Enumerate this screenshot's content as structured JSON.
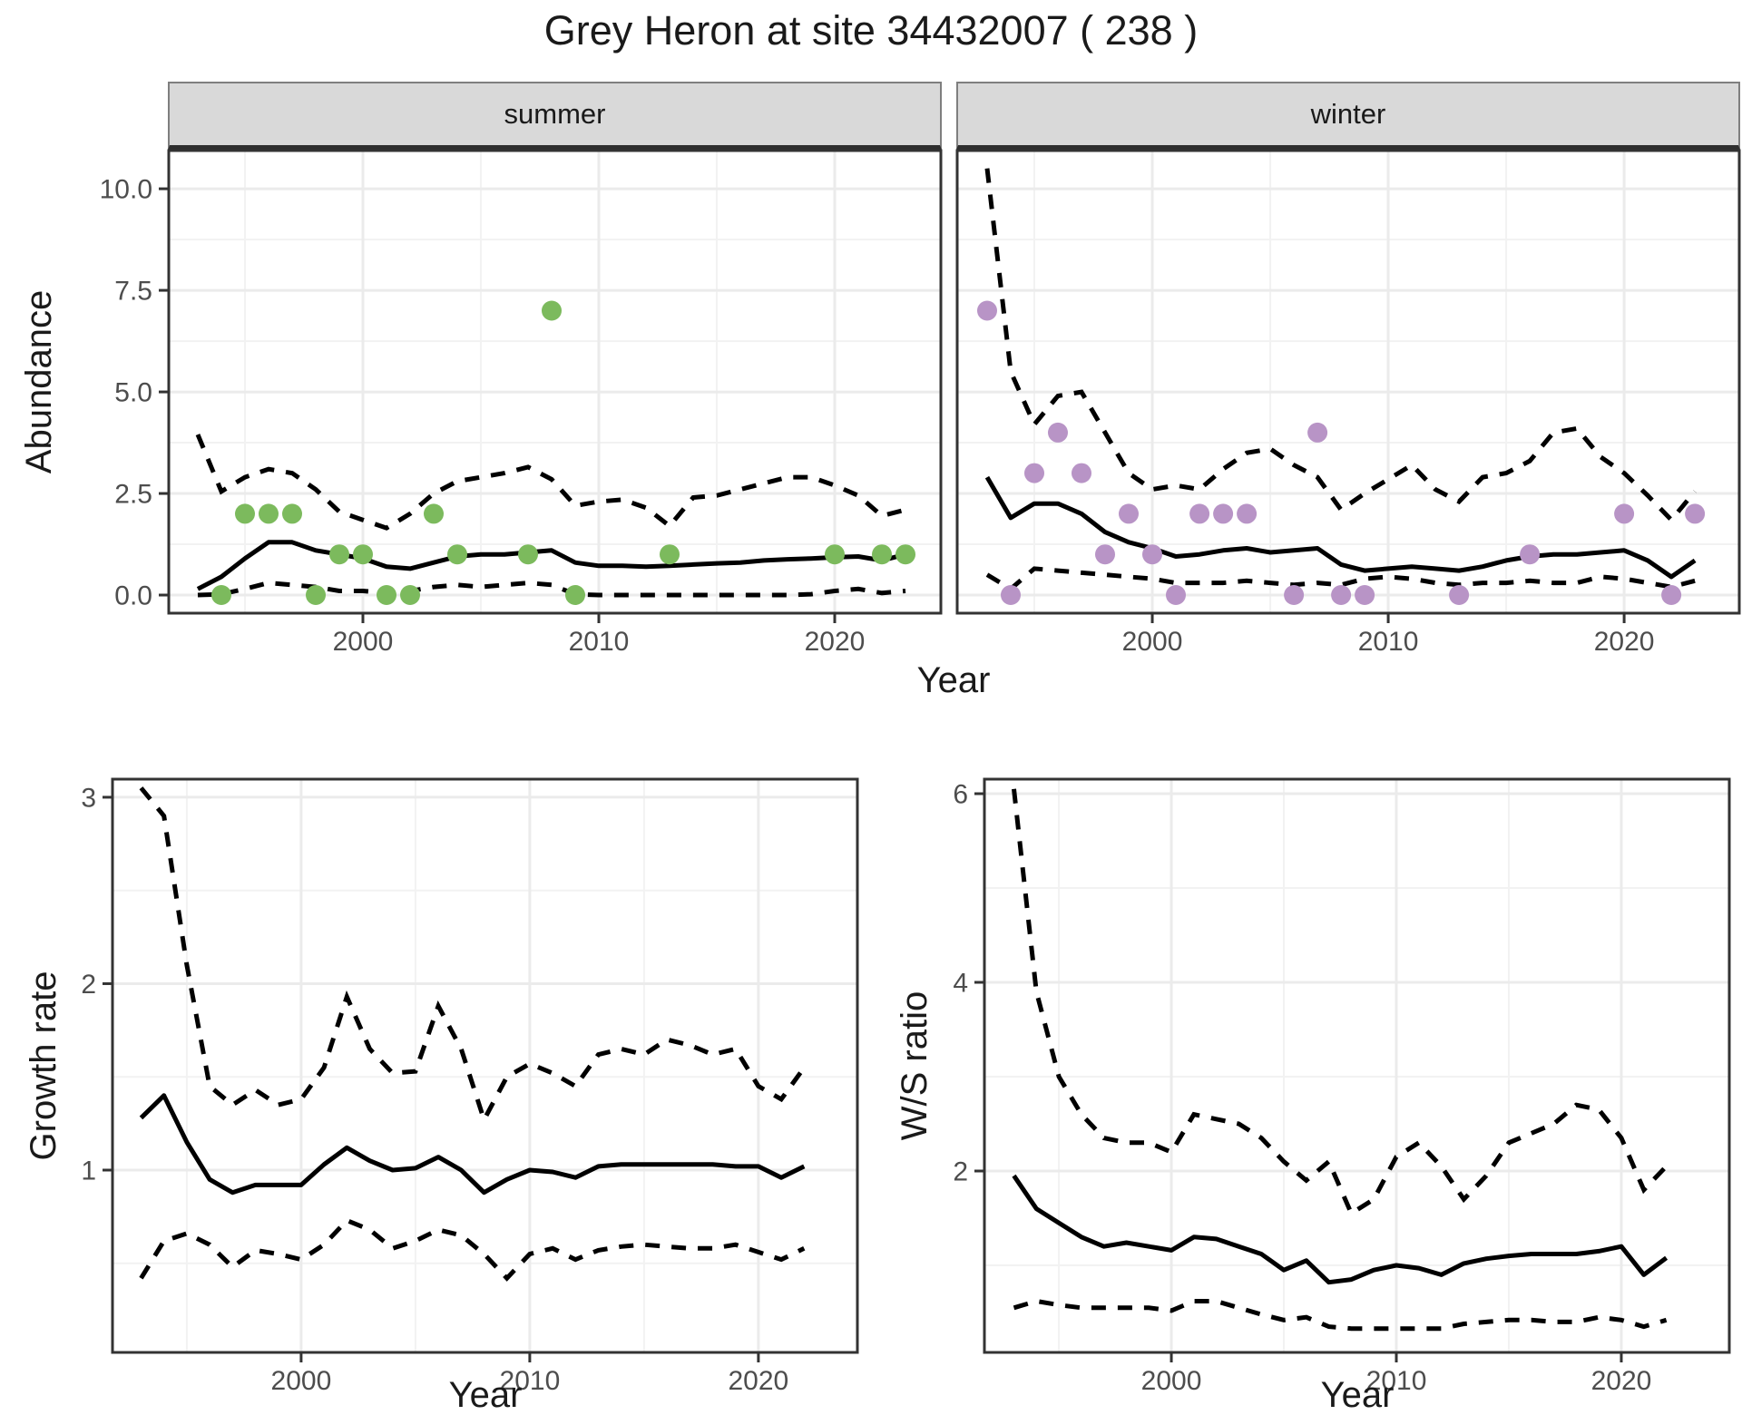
{
  "title": "Grey Heron at site 34432007 ( 238 )",
  "colors": {
    "summer_point": "#7CBA5D",
    "winter_point": "#B894C6",
    "median_line": "#000000",
    "ci_line": "#000000",
    "strip_bg": "#D9D9D9",
    "grid_major": "#EBEBEB",
    "grid_minor": "#F2F2F2",
    "axis_text": "#4D4D4D",
    "panel_border": "#333333",
    "plot_bg": "#FFFFFF"
  },
  "facets": {
    "left": "summer",
    "right": "winter"
  },
  "axis_titles": {
    "y_top": "Abundance",
    "x_top": "Year",
    "y_bottom_left": "Growth rate",
    "x_bottom_left": "Year",
    "y_bottom_right": "W/S ratio",
    "x_bottom_right": "Year"
  },
  "chart_data": [
    {
      "id": "summer",
      "type": "line",
      "facet": "summer",
      "xlabel": "Year",
      "ylabel": "Abundance",
      "xlim": [
        1991.77,
        2024.5
      ],
      "ylim": [
        -0.446,
        10.94
      ],
      "x_ticks": {
        "major": [
          2000,
          2010,
          2020
        ],
        "minor": [
          1995,
          2005,
          2015
        ],
        "labels": [
          "2000",
          "2010",
          "2020"
        ],
        "show_labels": true
      },
      "y_ticks": {
        "major": [
          0,
          2.5,
          5,
          7.5,
          10
        ],
        "minor": [
          1.25,
          3.75,
          6.25,
          8.75
        ],
        "labels": [
          "0.0",
          "2.5",
          "5.0",
          "7.5",
          "10.0"
        ],
        "show_labels": true
      },
      "points": [
        [
          1994,
          0
        ],
        [
          1995,
          2
        ],
        [
          1996,
          2
        ],
        [
          1997,
          2
        ],
        [
          1998,
          0
        ],
        [
          1999,
          1
        ],
        [
          2000,
          1
        ],
        [
          2001,
          0
        ],
        [
          2002,
          0
        ],
        [
          2003,
          2
        ],
        [
          2004,
          1
        ],
        [
          2007,
          1
        ],
        [
          2008,
          7
        ],
        [
          2009,
          0
        ],
        [
          2013,
          1
        ],
        [
          2020,
          1
        ],
        [
          2022,
          1
        ],
        [
          2023,
          1
        ]
      ],
      "point_color": "#7CBA5D",
      "series": [
        {
          "name": "median",
          "style": "solid",
          "start": 1993,
          "values": [
            0.15,
            0.45,
            0.9,
            1.3,
            1.3,
            1.1,
            1.0,
            0.9,
            0.7,
            0.65,
            0.8,
            0.95,
            1.0,
            1.0,
            1.05,
            1.1,
            0.8,
            0.72,
            0.72,
            0.7,
            0.72,
            0.75,
            0.78,
            0.8,
            0.85,
            0.88,
            0.9,
            0.93,
            0.95,
            0.85,
            1.0
          ]
        },
        {
          "name": "upper_ci",
          "style": "dashed",
          "start": 1993,
          "values": [
            3.95,
            2.55,
            2.9,
            3.1,
            3.0,
            2.6,
            2.05,
            1.85,
            1.65,
            2.0,
            2.5,
            2.8,
            2.9,
            3.0,
            3.15,
            2.85,
            2.2,
            2.3,
            2.35,
            2.15,
            1.7,
            2.4,
            2.45,
            2.6,
            2.75,
            2.9,
            2.9,
            2.7,
            2.45,
            1.95,
            2.1
          ]
        },
        {
          "name": "lower_ci",
          "style": "dashed",
          "start": 1993,
          "values": [
            0.0,
            0.02,
            0.15,
            0.3,
            0.25,
            0.2,
            0.1,
            0.1,
            0.05,
            0.1,
            0.2,
            0.25,
            0.2,
            0.25,
            0.3,
            0.25,
            0.02,
            0.0,
            0.0,
            0.0,
            0.0,
            0.0,
            0.0,
            0.0,
            0.0,
            0.0,
            0.02,
            0.1,
            0.15,
            0.05,
            0.1
          ]
        }
      ]
    },
    {
      "id": "winter",
      "type": "line",
      "facet": "winter",
      "xlabel": "Year",
      "ylabel": "Abundance",
      "xlim": [
        1991.73,
        2024.88
      ],
      "ylim": [
        -0.446,
        10.94
      ],
      "x_ticks": {
        "major": [
          2000,
          2010,
          2020
        ],
        "minor": [
          1995,
          2005,
          2015
        ],
        "labels": [
          "2000",
          "2010",
          "2020"
        ],
        "show_labels": true
      },
      "y_ticks": {
        "major": [
          0,
          2.5,
          5,
          7.5,
          10
        ],
        "minor": [
          1.25,
          3.75,
          6.25,
          8.75
        ],
        "labels": [
          "0.0",
          "2.5",
          "5.0",
          "7.5",
          "10.0"
        ],
        "show_labels": false
      },
      "points": [
        [
          1993,
          7
        ],
        [
          1994,
          0
        ],
        [
          1995,
          3
        ],
        [
          1996,
          4
        ],
        [
          1997,
          3
        ],
        [
          1998,
          1
        ],
        [
          1999,
          2
        ],
        [
          2000,
          1
        ],
        [
          2001,
          0
        ],
        [
          2002,
          2
        ],
        [
          2003,
          2
        ],
        [
          2004,
          2
        ],
        [
          2006,
          0
        ],
        [
          2007,
          4
        ],
        [
          2008,
          0
        ],
        [
          2009,
          0
        ],
        [
          2013,
          0
        ],
        [
          2016,
          1
        ],
        [
          2020,
          2
        ],
        [
          2022,
          0
        ],
        [
          2023,
          2
        ]
      ],
      "point_color": "#B894C6",
      "series": [
        {
          "name": "median",
          "style": "solid",
          "start": 1993,
          "values": [
            2.9,
            1.9,
            2.25,
            2.25,
            2.0,
            1.55,
            1.3,
            1.15,
            0.95,
            1.0,
            1.1,
            1.15,
            1.05,
            1.1,
            1.15,
            0.75,
            0.6,
            0.65,
            0.7,
            0.65,
            0.6,
            0.7,
            0.85,
            0.95,
            1.0,
            1.0,
            1.05,
            1.1,
            0.85,
            0.45,
            0.85
          ]
        },
        {
          "name": "upper_ci",
          "style": "dashed",
          "start": 1993,
          "values": [
            10.5,
            5.5,
            4.2,
            4.9,
            5.0,
            4.0,
            3.0,
            2.6,
            2.7,
            2.6,
            3.1,
            3.5,
            3.6,
            3.2,
            2.9,
            2.1,
            2.5,
            2.85,
            3.2,
            2.6,
            2.3,
            2.9,
            3.0,
            3.3,
            4.0,
            4.1,
            3.4,
            3.0,
            2.45,
            1.85,
            2.55
          ]
        },
        {
          "name": "lower_ci",
          "style": "dashed",
          "start": 1993,
          "values": [
            0.5,
            0.15,
            0.65,
            0.6,
            0.55,
            0.5,
            0.45,
            0.4,
            0.3,
            0.3,
            0.3,
            0.35,
            0.3,
            0.25,
            0.3,
            0.25,
            0.4,
            0.45,
            0.4,
            0.3,
            0.25,
            0.3,
            0.3,
            0.35,
            0.3,
            0.3,
            0.45,
            0.4,
            0.3,
            0.2,
            0.35
          ]
        }
      ]
    },
    {
      "id": "growth",
      "type": "line",
      "facet": null,
      "xlabel": "Year",
      "ylabel": "Growth rate",
      "xlim": [
        1991.75,
        2024.33
      ],
      "ylim": [
        0.022,
        3.097
      ],
      "x_ticks": {
        "major": [
          2000,
          2010,
          2020
        ],
        "minor": [
          1995,
          2005,
          2015
        ],
        "labels": [
          "2000",
          "2010",
          "2020"
        ],
        "show_labels": true
      },
      "y_ticks": {
        "major": [
          1,
          2,
          3
        ],
        "minor": [
          0.5,
          1.5,
          2.5
        ],
        "labels": [
          "1",
          "2",
          "3"
        ],
        "show_labels": true
      },
      "points": [],
      "point_color": null,
      "series": [
        {
          "name": "median",
          "style": "solid",
          "start": 1993,
          "values": [
            1.28,
            1.4,
            1.15,
            0.95,
            0.88,
            0.92,
            0.92,
            0.92,
            1.03,
            1.12,
            1.05,
            1.0,
            1.01,
            1.07,
            1.0,
            0.88,
            0.95,
            1.0,
            0.99,
            0.96,
            1.02,
            1.03,
            1.03,
            1.03,
            1.03,
            1.03,
            1.02,
            1.02,
            0.96,
            1.02
          ]
        },
        {
          "name": "upper_ci",
          "style": "dashed",
          "start": 1993,
          "values": [
            3.05,
            2.9,
            2.1,
            1.45,
            1.35,
            1.43,
            1.35,
            1.38,
            1.55,
            1.93,
            1.65,
            1.52,
            1.53,
            1.88,
            1.65,
            1.27,
            1.5,
            1.57,
            1.52,
            1.45,
            1.62,
            1.65,
            1.62,
            1.7,
            1.67,
            1.62,
            1.65,
            1.45,
            1.38,
            1.55
          ]
        },
        {
          "name": "lower_ci",
          "style": "dashed",
          "start": 1993,
          "values": [
            0.42,
            0.62,
            0.66,
            0.6,
            0.48,
            0.57,
            0.55,
            0.52,
            0.6,
            0.73,
            0.68,
            0.58,
            0.62,
            0.68,
            0.65,
            0.55,
            0.42,
            0.55,
            0.58,
            0.52,
            0.57,
            0.59,
            0.6,
            0.59,
            0.58,
            0.58,
            0.6,
            0.56,
            0.52,
            0.58
          ]
        }
      ]
    },
    {
      "id": "ws_ratio",
      "type": "line",
      "facet": null,
      "xlabel": "Year",
      "ylabel": "W/S ratio",
      "xlim": [
        1991.69,
        2024.8
      ],
      "ylim": [
        0.077,
        6.154
      ],
      "x_ticks": {
        "major": [
          2000,
          2010,
          2020
        ],
        "minor": [
          1995,
          2005,
          2015
        ],
        "labels": [
          "2000",
          "2010",
          "2020"
        ],
        "show_labels": true
      },
      "y_ticks": {
        "major": [
          2,
          4,
          6
        ],
        "minor": [
          1,
          3,
          5
        ],
        "labels": [
          "2",
          "4",
          "6"
        ],
        "show_labels": true
      },
      "points": [],
      "point_color": null,
      "series": [
        {
          "name": "median",
          "style": "solid",
          "start": 1993,
          "values": [
            1.95,
            1.6,
            1.45,
            1.3,
            1.2,
            1.24,
            1.2,
            1.16,
            1.3,
            1.28,
            1.2,
            1.12,
            0.95,
            1.05,
            0.82,
            0.85,
            0.95,
            1.0,
            0.97,
            0.9,
            1.02,
            1.07,
            1.1,
            1.12,
            1.12,
            1.12,
            1.15,
            1.2,
            0.9,
            1.08
          ]
        },
        {
          "name": "upper_ci",
          "style": "dashed",
          "start": 1993,
          "values": [
            6.05,
            3.9,
            3.0,
            2.6,
            2.35,
            2.3,
            2.3,
            2.2,
            2.6,
            2.55,
            2.5,
            2.35,
            2.1,
            1.9,
            2.1,
            1.55,
            1.7,
            2.15,
            2.3,
            2.05,
            1.7,
            1.95,
            2.3,
            2.4,
            2.5,
            2.7,
            2.65,
            2.35,
            1.8,
            2.05
          ]
        },
        {
          "name": "lower_ci",
          "style": "dashed",
          "start": 1993,
          "values": [
            0.55,
            0.62,
            0.58,
            0.55,
            0.55,
            0.55,
            0.55,
            0.52,
            0.62,
            0.62,
            0.55,
            0.48,
            0.42,
            0.45,
            0.35,
            0.33,
            0.33,
            0.33,
            0.33,
            0.33,
            0.38,
            0.4,
            0.42,
            0.42,
            0.4,
            0.4,
            0.45,
            0.42,
            0.35,
            0.42
          ]
        }
      ]
    }
  ]
}
